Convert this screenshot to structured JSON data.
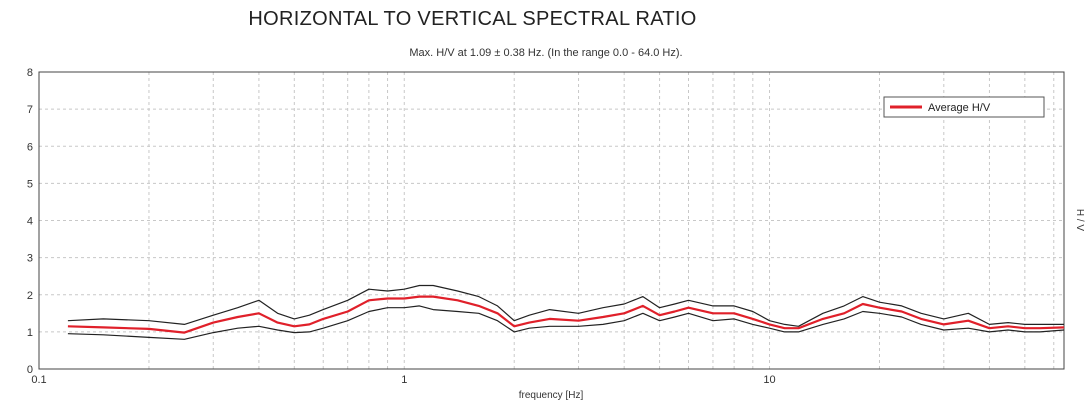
{
  "chart_data": {
    "type": "line",
    "title": "HORIZONTAL TO VERTICAL SPECTRAL RATIO",
    "subtitle": "Max. H/V at 1.09 ± 0.38 Hz. (In the range 0.0 - 64.0 Hz).",
    "xlabel": "frequency [Hz]",
    "ylabel": "H / V",
    "x_scale": "log",
    "xlim": [
      0.1,
      64
    ],
    "ylim": [
      0,
      8
    ],
    "x_ticks": [
      "0.1",
      "1",
      "10"
    ],
    "y_ticks": [
      "0",
      "1",
      "2",
      "3",
      "4",
      "5",
      "6",
      "7",
      "8"
    ],
    "grid": true,
    "legend": {
      "position": "top-right",
      "entries": [
        "Average H/V"
      ]
    },
    "x": [
      0.12,
      0.15,
      0.2,
      0.25,
      0.3,
      0.35,
      0.4,
      0.45,
      0.5,
      0.55,
      0.6,
      0.7,
      0.8,
      0.9,
      1.0,
      1.1,
      1.2,
      1.4,
      1.6,
      1.8,
      2.0,
      2.2,
      2.5,
      3.0,
      3.5,
      4.0,
      4.5,
      5.0,
      5.5,
      6.0,
      7.0,
      8.0,
      9.0,
      10.0,
      11.0,
      12.0,
      14.0,
      16.0,
      18.0,
      20.0,
      23.0,
      26.0,
      30.0,
      35.0,
      40.0,
      45.0,
      50.0,
      55.0,
      64.0
    ],
    "series": [
      {
        "name": "Average H/V",
        "color": "#e0202a",
        "values": [
          1.15,
          1.12,
          1.08,
          0.98,
          1.25,
          1.4,
          1.5,
          1.25,
          1.15,
          1.2,
          1.35,
          1.55,
          1.85,
          1.9,
          1.9,
          1.95,
          1.95,
          1.85,
          1.7,
          1.5,
          1.15,
          1.25,
          1.35,
          1.3,
          1.4,
          1.5,
          1.7,
          1.45,
          1.55,
          1.65,
          1.5,
          1.5,
          1.35,
          1.2,
          1.1,
          1.1,
          1.35,
          1.5,
          1.75,
          1.65,
          1.55,
          1.35,
          1.2,
          1.3,
          1.1,
          1.15,
          1.1,
          1.1,
          1.12
        ]
      },
      {
        "color": "#222222",
        "values": [
          1.3,
          1.35,
          1.3,
          1.2,
          1.45,
          1.65,
          1.85,
          1.5,
          1.35,
          1.45,
          1.6,
          1.85,
          2.15,
          2.1,
          2.15,
          2.25,
          2.25,
          2.1,
          1.95,
          1.7,
          1.3,
          1.45,
          1.6,
          1.5,
          1.65,
          1.75,
          1.95,
          1.65,
          1.75,
          1.85,
          1.7,
          1.7,
          1.55,
          1.3,
          1.2,
          1.15,
          1.5,
          1.7,
          1.95,
          1.8,
          1.7,
          1.5,
          1.35,
          1.5,
          1.2,
          1.25,
          1.2,
          1.2,
          1.2
        ]
      },
      {
        "color": "#222222",
        "values": [
          0.95,
          0.92,
          0.85,
          0.8,
          0.98,
          1.1,
          1.15,
          1.05,
          0.98,
          1.0,
          1.1,
          1.3,
          1.55,
          1.65,
          1.65,
          1.7,
          1.6,
          1.55,
          1.5,
          1.3,
          1.0,
          1.1,
          1.15,
          1.15,
          1.2,
          1.3,
          1.5,
          1.3,
          1.4,
          1.5,
          1.3,
          1.35,
          1.2,
          1.1,
          1.0,
          1.0,
          1.2,
          1.35,
          1.55,
          1.5,
          1.4,
          1.2,
          1.05,
          1.1,
          1.0,
          1.05,
          1.0,
          1.0,
          1.05
        ]
      }
    ]
  }
}
